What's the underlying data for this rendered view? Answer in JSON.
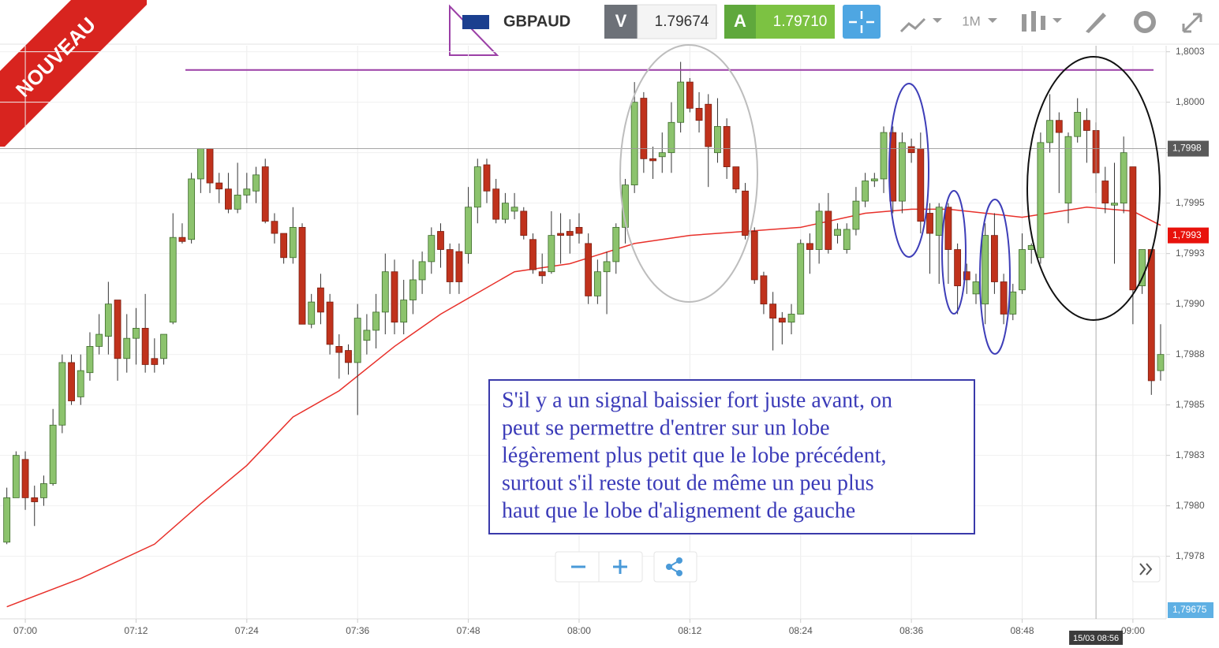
{
  "toolbar": {
    "symbol": "GBPAUD",
    "sell_label": "V",
    "sell_price": "1.79674",
    "buy_label": "A",
    "buy_price": "1.79710",
    "timeframe": "1M",
    "badge": "NOUVEAU"
  },
  "chart_data": {
    "type": "candlestick",
    "up_color": "#8cc36d",
    "down_color": "#c0321c",
    "grid": true,
    "xlim": [
      -2.74,
      123.6
    ],
    "ylim": [
      1.79744,
      1.80028
    ],
    "xticks": [
      {
        "value": 0,
        "label": "07:00"
      },
      {
        "value": 12,
        "label": "07:12"
      },
      {
        "value": 24,
        "label": "07:24"
      },
      {
        "value": 36,
        "label": "07:36"
      },
      {
        "value": 48,
        "label": "07:48"
      },
      {
        "value": 60,
        "label": "08:00"
      },
      {
        "value": 72,
        "label": "08:12"
      },
      {
        "value": 84,
        "label": "08:24"
      },
      {
        "value": 96,
        "label": "08:36"
      },
      {
        "value": 108,
        "label": "08:48"
      },
      {
        "value": 120,
        "label": "09:00"
      }
    ],
    "yticks": [
      {
        "value": 1.80025,
        "label": "1,8003"
      },
      {
        "value": 1.8,
        "label": "1,8000"
      },
      {
        "value": 1.79975,
        "label": "1,7998"
      },
      {
        "value": 1.7995,
        "label": "1,7995"
      },
      {
        "value": 1.79925,
        "label": "1,7993"
      },
      {
        "value": 1.799,
        "label": "1,7990"
      },
      {
        "value": 1.79875,
        "label": "1,7988"
      },
      {
        "value": 1.7985,
        "label": "1,7985"
      },
      {
        "value": 1.79825,
        "label": "1,7983"
      },
      {
        "value": 1.798,
        "label": "1,7980"
      },
      {
        "value": 1.79775,
        "label": "1,7978"
      }
    ],
    "x": [
      -2,
      -1,
      0,
      1,
      2,
      3,
      4,
      5,
      6,
      7,
      8,
      9,
      10,
      11,
      12,
      13,
      14,
      15,
      16,
      17,
      18,
      19,
      20,
      21,
      22,
      23,
      24,
      25,
      26,
      27,
      28,
      29,
      30,
      31,
      32,
      33,
      34,
      35,
      36,
      37,
      38,
      39,
      40,
      41,
      42,
      43,
      44,
      45,
      46,
      47,
      48,
      49,
      50,
      51,
      52,
      53,
      54,
      55,
      56,
      57,
      58,
      59,
      60,
      61,
      62,
      63,
      64,
      65,
      66,
      67,
      68,
      69,
      70,
      71,
      72,
      73,
      74,
      75,
      76,
      77,
      78,
      79,
      80,
      81,
      82,
      83,
      84,
      85,
      86,
      87,
      88,
      89,
      90,
      91,
      92,
      93,
      94,
      95,
      96,
      97,
      98,
      99,
      100,
      101,
      102,
      103,
      104,
      105,
      106,
      107,
      108,
      109,
      110,
      111,
      112,
      113,
      114,
      115,
      116,
      117,
      118,
      119,
      120,
      121,
      122,
      123
    ],
    "open": [
      1.79782,
      1.79804,
      1.79823,
      1.79804,
      1.79804,
      1.79811,
      1.7984,
      1.79871,
      1.79854,
      1.79866,
      1.79879,
      1.79884,
      1.79902,
      1.79873,
      1.79883,
      1.79888,
      1.79873,
      1.79873,
      1.79891,
      1.79933,
      1.79932,
      1.79962,
      1.79977,
      1.7996,
      1.79957,
      1.79947,
      1.79954,
      1.79956,
      1.79968,
      1.79941,
      1.79935,
      1.79923,
      1.79938,
      1.7989,
      1.79908,
      1.79901,
      1.79879,
      1.79877,
      1.79871,
      1.79882,
      1.79887,
      1.79896,
      1.79916,
      1.79891,
      1.79902,
      1.79912,
      1.79921,
      1.79936,
      1.79927,
      1.79926,
      1.79925,
      1.79948,
      1.79969,
      1.79957,
      1.79942,
      1.79946,
      1.79946,
      1.79932,
      1.79916,
      1.79916,
      1.79935,
      1.79936,
      1.79938,
      1.7993,
      1.79904,
      1.79916,
      1.79921,
      1.79938,
      1.79959,
      1.80002,
      1.79972,
      1.79973,
      1.79975,
      1.7999,
      1.8001,
      1.79997,
      1.79999,
      1.79975,
      1.79988,
      1.79968,
      1.79956,
      1.79936,
      1.79914,
      1.799,
      1.79893,
      1.79891,
      1.79895,
      1.7993,
      1.79927,
      1.79946,
      1.79934,
      1.79927,
      1.79937,
      1.79951,
      1.79961,
      1.79962,
      1.79985,
      1.79951,
      1.79978,
      1.79977,
      1.79945,
      1.79934,
      1.79948,
      1.79927,
      1.79916,
      1.79905,
      1.799,
      1.79934,
      1.79911,
      1.79895,
      1.79907,
      1.79927,
      1.79923,
      1.7998,
      1.79991,
      1.7995,
      1.79983,
      1.79991,
      1.79986,
      1.79961,
      1.79949,
      1.7995,
      1.79968,
      1.79909,
      1.79927,
      1.79867
    ],
    "high": [
      1.79809,
      1.79827,
      1.79827,
      1.7981,
      1.79815,
      1.79848,
      1.79875,
      1.79875,
      1.79875,
      1.79886,
      1.79895,
      1.79911,
      1.79902,
      1.79895,
      1.79898,
      1.79905,
      1.79883,
      1.79885,
      1.79945,
      1.7994,
      1.79965,
      1.79977,
      1.79977,
      1.79965,
      1.79965,
      1.7997,
      1.79965,
      1.79968,
      1.79972,
      1.79945,
      1.79935,
      1.79948,
      1.7994,
      1.79905,
      1.79915,
      1.79905,
      1.79885,
      1.7988,
      1.799,
      1.79895,
      1.79905,
      1.79925,
      1.79922,
      1.79912,
      1.79922,
      1.79926,
      1.79938,
      1.7994,
      1.7993,
      1.7993,
      1.79958,
      1.79972,
      1.79972,
      1.79962,
      1.79955,
      1.79955,
      1.79948,
      1.79935,
      1.79925,
      1.79946,
      1.79945,
      1.79942,
      1.79945,
      1.79935,
      1.79922,
      1.79926,
      1.7994,
      1.79962,
      1.8001,
      1.80005,
      1.79978,
      1.79985,
      1.8,
      1.8002,
      1.80012,
      1.80005,
      1.80004,
      1.80002,
      1.79992,
      1.79968,
      1.7996,
      1.79938,
      1.79916,
      1.79906,
      1.79896,
      1.799,
      1.79932,
      1.79935,
      1.7995,
      1.79955,
      1.7994,
      1.7994,
      1.79958,
      1.79965,
      1.79965,
      1.79988,
      1.79988,
      1.79985,
      1.79982,
      1.79985,
      1.7995,
      1.7995,
      1.7995,
      1.7993,
      1.7992,
      1.79915,
      1.7994,
      1.79945,
      1.79915,
      1.7991,
      1.79935,
      1.7993,
      1.79985,
      1.80004,
      1.79995,
      1.79985,
      1.80002,
      1.79997,
      1.7999,
      1.79968,
      1.7997,
      1.79983,
      1.79968,
      1.79927,
      1.79927,
      1.7989
    ],
    "low": [
      1.79781,
      1.79804,
      1.79798,
      1.7979,
      1.798,
      1.7981,
      1.79836,
      1.7985,
      1.7985,
      1.79862,
      1.79875,
      1.79875,
      1.79862,
      1.79866,
      1.7987,
      1.79866,
      1.79866,
      1.7987,
      1.7989,
      1.7993,
      1.7993,
      1.79955,
      1.79955,
      1.7995,
      1.79945,
      1.79945,
      1.7995,
      1.7995,
      1.7994,
      1.7993,
      1.7992,
      1.7992,
      1.7989,
      1.79888,
      1.7989,
      1.79875,
      1.79863,
      1.79865,
      1.79845,
      1.79875,
      1.79878,
      1.79885,
      1.79885,
      1.79885,
      1.79895,
      1.79905,
      1.79915,
      1.79918,
      1.79905,
      1.79905,
      1.7992,
      1.7994,
      1.7995,
      1.7994,
      1.7994,
      1.79942,
      1.79932,
      1.79915,
      1.7991,
      1.79915,
      1.7992,
      1.79925,
      1.7993,
      1.799,
      1.799,
      1.79895,
      1.79915,
      1.7993,
      1.79955,
      1.79965,
      1.79962,
      1.79965,
      1.79965,
      1.79985,
      1.79995,
      1.79985,
      1.79958,
      1.7997,
      1.79962,
      1.79955,
      1.79932,
      1.7991,
      1.79895,
      1.79877,
      1.7988,
      1.79885,
      1.79895,
      1.79915,
      1.7992,
      1.79925,
      1.7993,
      1.79925,
      1.79934,
      1.79948,
      1.79958,
      1.79955,
      1.79945,
      1.79945,
      1.7997,
      1.79935,
      1.79915,
      1.7991,
      1.7991,
      1.79895,
      1.79905,
      1.799,
      1.7989,
      1.79905,
      1.7989,
      1.79892,
      1.79905,
      1.7992,
      1.7992,
      1.79975,
      1.79955,
      1.7994,
      1.7998,
      1.7997,
      1.79955,
      1.79945,
      1.7992,
      1.79945,
      1.7989,
      1.79905,
      1.79855,
      1.79862
    ],
    "close": [
      1.79804,
      1.79825,
      1.79804,
      1.79802,
      1.79811,
      1.7984,
      1.79871,
      1.79852,
      1.79867,
      1.79879,
      1.79885,
      1.799,
      1.79873,
      1.79883,
      1.79888,
      1.7987,
      1.7987,
      1.79885,
      1.79933,
      1.79931,
      1.79962,
      1.79977,
      1.7996,
      1.79957,
      1.79947,
      1.79954,
      1.79957,
      1.79964,
      1.79941,
      1.79935,
      1.79923,
      1.79938,
      1.7989,
      1.79901,
      1.79896,
      1.7988,
      1.79876,
      1.79871,
      1.79893,
      1.79887,
      1.79896,
      1.79916,
      1.79891,
      1.79902,
      1.79912,
      1.79921,
      1.79934,
      1.79927,
      1.79911,
      1.79911,
      1.79948,
      1.79968,
      1.79956,
      1.79942,
      1.7995,
      1.79948,
      1.79934,
      1.79917,
      1.79914,
      1.79934,
      1.79934,
      1.79934,
      1.79935,
      1.79904,
      1.79916,
      1.79921,
      1.79938,
      1.79959,
      1.8,
      1.79972,
      1.79971,
      1.79975,
      1.7999,
      1.8001,
      1.79997,
      1.79991,
      1.79978,
      1.79988,
      1.79968,
      1.79957,
      1.79934,
      1.79912,
      1.799,
      1.79893,
      1.79891,
      1.79895,
      1.7993,
      1.79927,
      1.79946,
      1.79927,
      1.79937,
      1.79937,
      1.79951,
      1.79961,
      1.79962,
      1.79985,
      1.79951,
      1.7998,
      1.79975,
      1.79941,
      1.79935,
      1.79948,
      1.79927,
      1.79909,
      1.79912,
      1.79911,
      1.79934,
      1.79911,
      1.79895,
      1.79906,
      1.79927,
      1.79929,
      1.7998,
      1.79991,
      1.79985,
      1.79983,
      1.79995,
      1.79986,
      1.79965,
      1.7995,
      1.7995,
      1.79975,
      1.79907,
      1.79927,
      1.79862,
      1.79875
    ],
    "ma_color": "#e8302a",
    "ma_x": [
      -2,
      6,
      14,
      19,
      24,
      29,
      34,
      40,
      45,
      53,
      59,
      66,
      72,
      78,
      84,
      91,
      96,
      100,
      108,
      115,
      120,
      123
    ],
    "ma_values": [
      1.7975,
      1.79764,
      1.79781,
      1.79801,
      1.7982,
      1.79844,
      1.79857,
      1.79879,
      1.79895,
      1.79916,
      1.7992,
      1.7993,
      1.79934,
      1.79936,
      1.79938,
      1.79945,
      1.79947,
      1.79947,
      1.79943,
      1.79948,
      1.79946,
      1.79939
    ],
    "level_line": {
      "value": 1.80016,
      "color": "#9b3fa6"
    },
    "price_markers": [
      {
        "value": 1.79977,
        "label": "1,7998",
        "color": "#5a5a5a"
      },
      {
        "value": 1.79934,
        "label": "1,7993",
        "color": "#e8120c"
      }
    ],
    "crosshair": {
      "x": 116,
      "label": "15/03 08:56"
    },
    "bid_marker": "1,79675",
    "annotation": [
      "S'il y a un signal baissier fort juste avant, on",
      "peut se permettre d'entrer sur un lobe",
      "légèrement plus petit que le lobe précédent,",
      "surtout s'il reste tout de même un peu plus",
      "haut que le lobe d'alignement de gauche"
    ]
  }
}
